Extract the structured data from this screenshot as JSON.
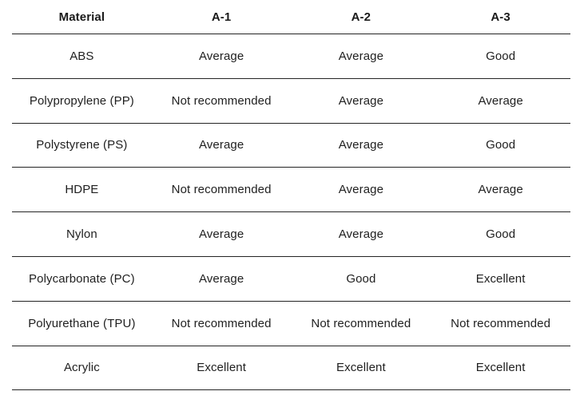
{
  "colors": {
    "background": "#ffffff",
    "text": "#1f1f1f",
    "header_text": "#1a1a1a",
    "rule": "#242424"
  },
  "chart_data": {
    "type": "table",
    "title": "",
    "columns": [
      "Material",
      "A-1",
      "A-2",
      "A-3"
    ],
    "rows": [
      [
        "ABS",
        "Average",
        "Average",
        "Good"
      ],
      [
        "Polypropylene (PP)",
        "Not recommended",
        "Average",
        "Average"
      ],
      [
        "Polystyrene (PS)",
        "Average",
        "Average",
        "Good"
      ],
      [
        "HDPE",
        "Not recommended",
        "Average",
        "Average"
      ],
      [
        "Nylon",
        "Average",
        "Average",
        "Good"
      ],
      [
        "Polycarbonate (PC)",
        "Average",
        "Good",
        "Excellent"
      ],
      [
        "Polyurethane (TPU)",
        "Not recommended",
        "Not recommended",
        "Not recommended"
      ],
      [
        "Acrylic",
        "Excellent",
        "Excellent",
        "Excellent"
      ]
    ],
    "layout_hints": {
      "header_bold": true,
      "row_separators": true,
      "vertical_separators": false,
      "alignment": "center"
    }
  }
}
